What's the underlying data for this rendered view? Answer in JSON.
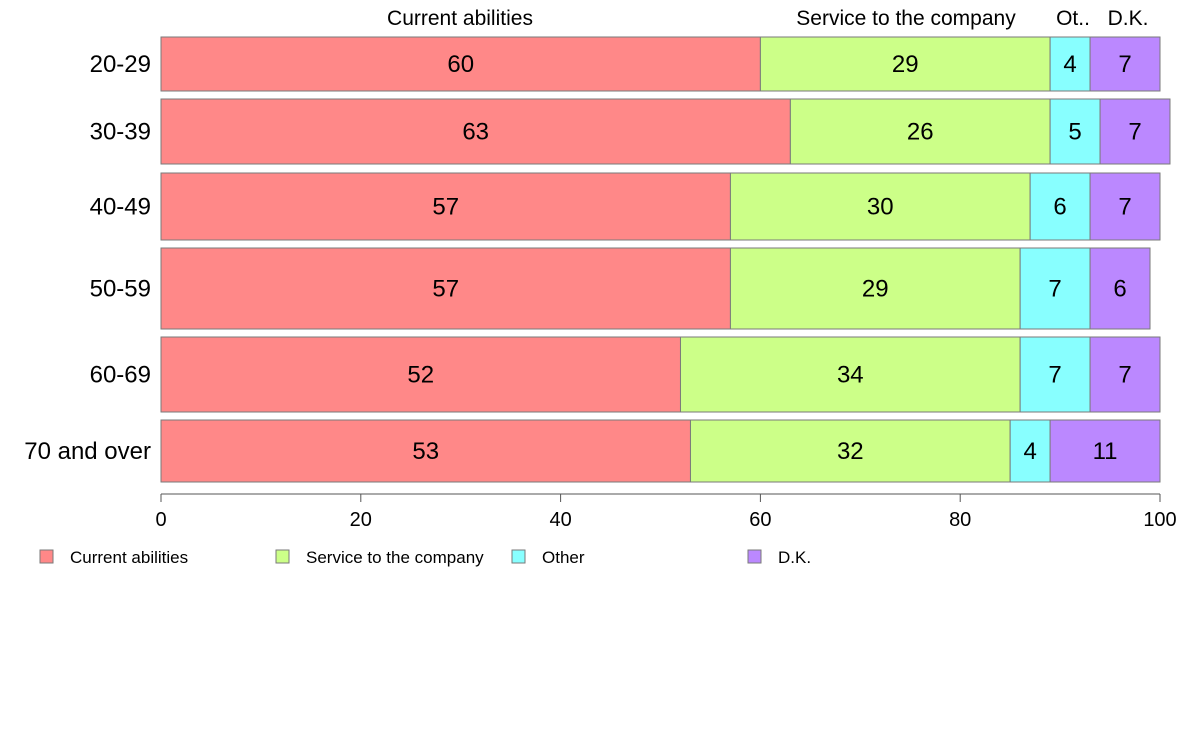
{
  "chart_data": {
    "type": "bar",
    "orientation": "horizontal",
    "stacked": true,
    "categories": [
      "20-29",
      "30-39",
      "40-49",
      "50-59",
      "60-69",
      "70 and over"
    ],
    "series": [
      {
        "name": "Current abilities",
        "color": "#ff8888",
        "values": [
          60,
          63,
          57,
          57,
          52,
          53
        ]
      },
      {
        "name": "Service to the company",
        "color": "#ccff88",
        "values": [
          29,
          26,
          30,
          29,
          34,
          32
        ]
      },
      {
        "name": "Other",
        "color": "#88ffff",
        "values": [
          4,
          5,
          6,
          7,
          7,
          4
        ]
      },
      {
        "name": "D.K.",
        "color": "#bb88ff",
        "values": [
          7,
          7,
          7,
          6,
          7,
          11
        ]
      }
    ],
    "column_headers": [
      "Current abilities",
      "Service to the company",
      "Ot..",
      "D.K."
    ],
    "xlim": [
      0,
      100
    ],
    "xticks": [
      "0",
      "20",
      "40",
      "60",
      "80",
      "100"
    ],
    "grid": false,
    "legend_position": "bottom"
  }
}
